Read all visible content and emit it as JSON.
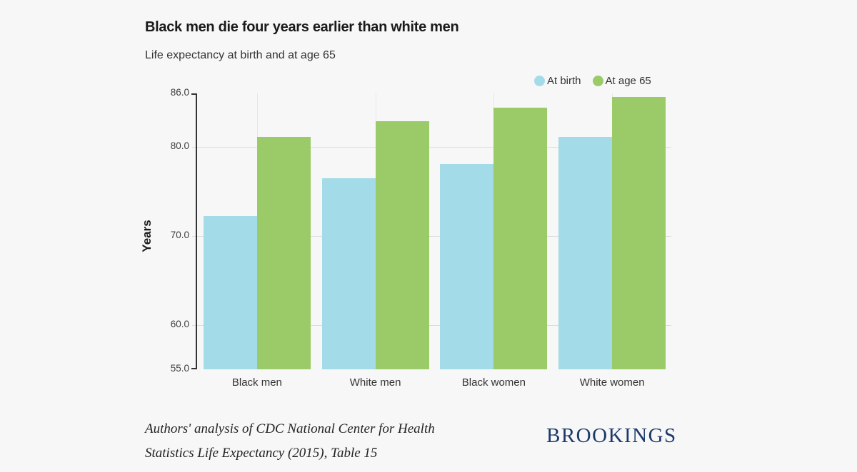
{
  "chart_data": {
    "type": "bar",
    "title": "Black men die four years earlier than white men",
    "subtitle": "Life expectancy at birth and at age 65",
    "ylabel": "Years",
    "xlabel": "",
    "categories": [
      "Black men",
      "White men",
      "Black women",
      "White women"
    ],
    "series": [
      {
        "name": "At birth",
        "color": "#a3dce8",
        "values": [
          72.2,
          76.5,
          78.1,
          81.1
        ]
      },
      {
        "name": "At age 65",
        "color": "#9bcb69",
        "values": [
          81.1,
          82.9,
          84.4,
          85.6
        ]
      }
    ],
    "ylim": [
      55,
      86
    ],
    "yticks": [
      55,
      60,
      70,
      80,
      86
    ],
    "ytick_labels": [
      "55.0",
      "60.0",
      "70.0",
      "80.0",
      "86.0"
    ],
    "grid": true,
    "legend_position": "top-right"
  },
  "footer": {
    "source_line1": "Authors' analysis of CDC National Center for Health",
    "source_line2": "Statistics Life Expectancy (2015), Table 15",
    "brand": "BROOKINGS"
  },
  "colors": {
    "background": "#f7f7f7",
    "at_birth": "#a3dce8",
    "at_age_65": "#9bcb69",
    "brand": "#1b3a6b",
    "axis": "#333333",
    "gridline": "#dcdcdc"
  }
}
